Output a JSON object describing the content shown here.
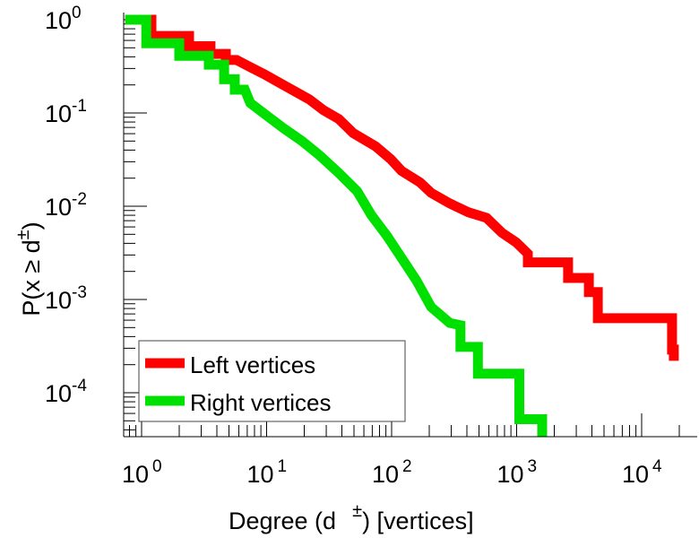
{
  "chart_data": {
    "type": "line",
    "title": "",
    "xlabel": "Degree (d",
    "xlabel_sup": "±",
    "xlabel_suffix": ") [vertices]",
    "ylabel": "P(x ≥ d",
    "ylabel_sup": "±",
    "ylabel_suffix": ")",
    "xscale": "log",
    "yscale": "log",
    "xlim": [
      0.72,
      26000
    ],
    "ylim": [
      3.4e-05,
      1.15
    ],
    "xticks": [
      {
        "base": "10",
        "exp": "0",
        "value": 1
      },
      {
        "base": "10",
        "exp": "1",
        "value": 10
      },
      {
        "base": "10",
        "exp": "2",
        "value": 100
      },
      {
        "base": "10",
        "exp": "3",
        "value": 1000
      },
      {
        "base": "10",
        "exp": "4",
        "value": 10000
      }
    ],
    "yticks": [
      {
        "base": "10",
        "exp": "0",
        "value": 1
      },
      {
        "base": "10",
        "exp": "-1",
        "value": 0.1
      },
      {
        "base": "10",
        "exp": "-2",
        "value": 0.01
      },
      {
        "base": "10",
        "exp": "-3",
        "value": 0.001
      },
      {
        "base": "10",
        "exp": "-4",
        "value": 0.0001
      }
    ],
    "grid": false,
    "legend_position": "bottom-left",
    "series": [
      {
        "name": "Left vertices",
        "color": "#ff0000",
        "points": [
          [
            0.74,
            1
          ],
          [
            1.2,
            1
          ],
          [
            1.2,
            0.67
          ],
          [
            2.4,
            0.67
          ],
          [
            2.4,
            0.52
          ],
          [
            3.56,
            0.52
          ],
          [
            3.56,
            0.43
          ],
          [
            4.72,
            0.43
          ],
          [
            4.72,
            0.37
          ],
          [
            5.75,
            0.37
          ],
          [
            7.4,
            0.31
          ],
          [
            9.6,
            0.26
          ],
          [
            13.6,
            0.2
          ],
          [
            21.9,
            0.14
          ],
          [
            28.5,
            0.107
          ],
          [
            37.8,
            0.086
          ],
          [
            49.2,
            0.061
          ],
          [
            74.3,
            0.044
          ],
          [
            98.4,
            0.032
          ],
          [
            120,
            0.024
          ],
          [
            169,
            0.018
          ],
          [
            207,
            0.0139
          ],
          [
            292,
            0.0107
          ],
          [
            413,
            0.0086
          ],
          [
            575,
            0.0075
          ],
          [
            762,
            0.0052
          ],
          [
            991,
            0.0041
          ],
          [
            1230,
            0.0031
          ],
          [
            1230,
            0.0025
          ],
          [
            2580,
            0.0025
          ],
          [
            2580,
            0.0017
          ],
          [
            3780,
            0.0017
          ],
          [
            3780,
            0.0012
          ],
          [
            4460,
            0.0012
          ],
          [
            4460,
            0.00063
          ],
          [
            17500,
            0.00063
          ],
          [
            17500,
            0.00029
          ],
          [
            18100,
            0.00029
          ],
          [
            18100,
            0.00022
          ]
        ]
      },
      {
        "name": "Right vertices",
        "color": "#00e000",
        "points": [
          [
            0.74,
            1
          ],
          [
            1.09,
            1
          ],
          [
            1.09,
            0.56
          ],
          [
            2.0,
            0.56
          ],
          [
            2.0,
            0.41
          ],
          [
            3.45,
            0.41
          ],
          [
            3.45,
            0.33
          ],
          [
            4.57,
            0.33
          ],
          [
            4.57,
            0.23
          ],
          [
            5.57,
            0.23
          ],
          [
            5.57,
            0.178
          ],
          [
            6.7,
            0.178
          ],
          [
            7.4,
            0.128
          ],
          [
            9.6,
            0.098
          ],
          [
            13.6,
            0.069
          ],
          [
            19.2,
            0.05
          ],
          [
            26.6,
            0.035
          ],
          [
            37.8,
            0.0227
          ],
          [
            53,
            0.0145
          ],
          [
            69,
            0.008
          ],
          [
            92,
            0.0048
          ],
          [
            120,
            0.0028
          ],
          [
            158,
            0.0016
          ],
          [
            207,
            0.00083
          ],
          [
            292,
            0.00056
          ],
          [
            355,
            0.00053
          ],
          [
            355,
            0.00031
          ],
          [
            490,
            0.00031
          ],
          [
            490,
            0.00016
          ],
          [
            1050,
            0.00016
          ],
          [
            1050,
            5.2e-05
          ],
          [
            1600,
            5.2e-05
          ],
          [
            1600,
            3.4e-05
          ]
        ]
      }
    ]
  }
}
